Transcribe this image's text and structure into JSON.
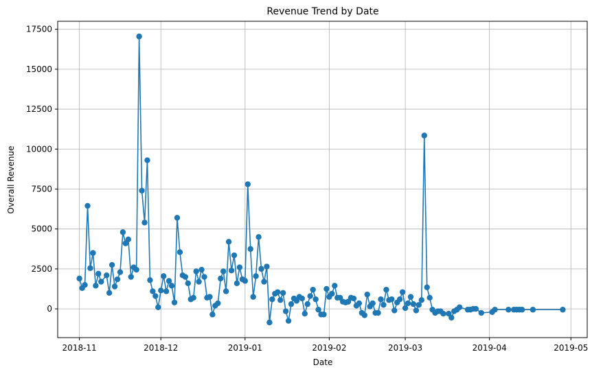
{
  "chart_data": {
    "type": "line",
    "title": "Revenue Trend by Date",
    "xlabel": "Date",
    "ylabel": "Overall Revenue",
    "xlim": [
      "2018-10-24",
      "2019-05-07"
    ],
    "ylim": [
      -1800,
      18000
    ],
    "grid": true,
    "legend": "none",
    "line_color": "#1f77b4",
    "marker": "circle",
    "x_ticks": [
      {
        "date": "2018-11-01",
        "label": "2018-11"
      },
      {
        "date": "2018-12-01",
        "label": "2018-12"
      },
      {
        "date": "2019-01-01",
        "label": "2019-01"
      },
      {
        "date": "2019-02-01",
        "label": "2019-02"
      },
      {
        "date": "2019-03-01",
        "label": "2019-03"
      },
      {
        "date": "2019-04-01",
        "label": "2019-04"
      },
      {
        "date": "2019-05-01",
        "label": "2019-05"
      }
    ],
    "y_ticks": [
      {
        "value": 0,
        "label": "0"
      },
      {
        "value": 2500,
        "label": "2500"
      },
      {
        "value": 5000,
        "label": "5000"
      },
      {
        "value": 7500,
        "label": "7500"
      },
      {
        "value": 10000,
        "label": "10000"
      },
      {
        "value": 12500,
        "label": "12500"
      },
      {
        "value": 15000,
        "label": "15000"
      },
      {
        "value": 17500,
        "label": "17500"
      }
    ],
    "series": [
      {
        "points": [
          [
            "2018-11-01",
            1900
          ],
          [
            "2018-11-02",
            1300
          ],
          [
            "2018-11-03",
            1500
          ],
          [
            "2018-11-04",
            6450
          ],
          [
            "2018-11-05",
            2550
          ],
          [
            "2018-11-06",
            3500
          ],
          [
            "2018-11-07",
            1450
          ],
          [
            "2018-11-08",
            2200
          ],
          [
            "2018-11-09",
            1700
          ],
          [
            "2018-11-11",
            2100
          ],
          [
            "2018-11-12",
            1000
          ],
          [
            "2018-11-13",
            2750
          ],
          [
            "2018-11-14",
            1400
          ],
          [
            "2018-11-15",
            1850
          ],
          [
            "2018-11-16",
            2300
          ],
          [
            "2018-11-17",
            4800
          ],
          [
            "2018-11-18",
            4100
          ],
          [
            "2018-11-19",
            4350
          ],
          [
            "2018-11-20",
            2000
          ],
          [
            "2018-11-21",
            2600
          ],
          [
            "2018-11-22",
            2450
          ],
          [
            "2018-11-23",
            17050
          ],
          [
            "2018-11-24",
            7400
          ],
          [
            "2018-11-25",
            5400
          ],
          [
            "2018-11-26",
            9300
          ],
          [
            "2018-11-27",
            1800
          ],
          [
            "2018-11-28",
            1100
          ],
          [
            "2018-11-29",
            800
          ],
          [
            "2018-11-30",
            100
          ],
          [
            "2018-12-01",
            1150
          ],
          [
            "2018-12-02",
            2050
          ],
          [
            "2018-12-03",
            1100
          ],
          [
            "2018-12-04",
            1750
          ],
          [
            "2018-12-05",
            1450
          ],
          [
            "2018-12-06",
            400
          ],
          [
            "2018-12-07",
            5700
          ],
          [
            "2018-12-08",
            3550
          ],
          [
            "2018-12-09",
            2100
          ],
          [
            "2018-12-10",
            2000
          ],
          [
            "2018-12-11",
            1600
          ],
          [
            "2018-12-12",
            600
          ],
          [
            "2018-12-13",
            700
          ],
          [
            "2018-12-14",
            2350
          ],
          [
            "2018-12-15",
            1700
          ],
          [
            "2018-12-16",
            2450
          ],
          [
            "2018-12-17",
            2000
          ],
          [
            "2018-12-18",
            700
          ],
          [
            "2018-12-19",
            750
          ],
          [
            "2018-12-20",
            -350
          ],
          [
            "2018-12-21",
            200
          ],
          [
            "2018-12-22",
            350
          ],
          [
            "2018-12-23",
            1900
          ],
          [
            "2018-12-24",
            2350
          ],
          [
            "2018-12-25",
            1100
          ],
          [
            "2018-12-26",
            4200
          ],
          [
            "2018-12-27",
            2400
          ],
          [
            "2018-12-28",
            3350
          ],
          [
            "2018-12-29",
            1600
          ],
          [
            "2018-12-30",
            2600
          ],
          [
            "2018-12-31",
            1850
          ],
          [
            "2019-01-01",
            1750
          ],
          [
            "2019-01-02",
            7800
          ],
          [
            "2019-01-03",
            3750
          ],
          [
            "2019-01-04",
            750
          ],
          [
            "2019-01-05",
            2050
          ],
          [
            "2019-01-06",
            4500
          ],
          [
            "2019-01-07",
            2500
          ],
          [
            "2019-01-08",
            1700
          ],
          [
            "2019-01-09",
            2650
          ],
          [
            "2019-01-10",
            -850
          ],
          [
            "2019-01-11",
            600
          ],
          [
            "2019-01-12",
            950
          ],
          [
            "2019-01-13",
            1050
          ],
          [
            "2019-01-14",
            550
          ],
          [
            "2019-01-15",
            1000
          ],
          [
            "2019-01-16",
            -150
          ],
          [
            "2019-01-17",
            -750
          ],
          [
            "2019-01-18",
            300
          ],
          [
            "2019-01-19",
            650
          ],
          [
            "2019-01-20",
            500
          ],
          [
            "2019-01-21",
            750
          ],
          [
            "2019-01-22",
            650
          ],
          [
            "2019-01-23",
            -300
          ],
          [
            "2019-01-24",
            300
          ],
          [
            "2019-01-25",
            800
          ],
          [
            "2019-01-26",
            1200
          ],
          [
            "2019-01-27",
            600
          ],
          [
            "2019-01-28",
            -50
          ],
          [
            "2019-01-29",
            -350
          ],
          [
            "2019-01-30",
            -350
          ],
          [
            "2019-01-31",
            1250
          ],
          [
            "2019-02-01",
            750
          ],
          [
            "2019-02-02",
            950
          ],
          [
            "2019-02-03",
            1450
          ],
          [
            "2019-02-04",
            700
          ],
          [
            "2019-02-05",
            700
          ],
          [
            "2019-02-06",
            450
          ],
          [
            "2019-02-07",
            400
          ],
          [
            "2019-02-08",
            450
          ],
          [
            "2019-02-09",
            700
          ],
          [
            "2019-02-10",
            650
          ],
          [
            "2019-02-11",
            200
          ],
          [
            "2019-02-12",
            350
          ],
          [
            "2019-02-13",
            -250
          ],
          [
            "2019-02-14",
            -400
          ],
          [
            "2019-02-15",
            900
          ],
          [
            "2019-02-16",
            150
          ],
          [
            "2019-02-17",
            350
          ],
          [
            "2019-02-18",
            -250
          ],
          [
            "2019-02-19",
            -250
          ],
          [
            "2019-02-20",
            600
          ],
          [
            "2019-02-21",
            250
          ],
          [
            "2019-02-22",
            1200
          ],
          [
            "2019-02-23",
            550
          ],
          [
            "2019-02-24",
            600
          ],
          [
            "2019-02-25",
            -100
          ],
          [
            "2019-02-26",
            400
          ],
          [
            "2019-02-27",
            600
          ],
          [
            "2019-02-28",
            1050
          ],
          [
            "2019-03-01",
            50
          ],
          [
            "2019-03-02",
            350
          ],
          [
            "2019-03-03",
            750
          ],
          [
            "2019-03-04",
            300
          ],
          [
            "2019-03-05",
            -100
          ],
          [
            "2019-03-06",
            250
          ],
          [
            "2019-03-07",
            550
          ],
          [
            "2019-03-08",
            10850
          ],
          [
            "2019-03-09",
            1350
          ],
          [
            "2019-03-10",
            700
          ],
          [
            "2019-03-11",
            -50
          ],
          [
            "2019-03-12",
            -250
          ],
          [
            "2019-03-13",
            -150
          ],
          [
            "2019-03-14",
            -150
          ],
          [
            "2019-03-15",
            -300
          ],
          [
            "2019-03-17",
            -300
          ],
          [
            "2019-03-18",
            -550
          ],
          [
            "2019-03-19",
            -150
          ],
          [
            "2019-03-20",
            -50
          ],
          [
            "2019-03-21",
            100
          ],
          [
            "2019-03-24",
            -50
          ],
          [
            "2019-03-25",
            -50
          ],
          [
            "2019-03-26",
            0
          ],
          [
            "2019-03-27",
            0
          ],
          [
            "2019-03-29",
            -250
          ],
          [
            "2019-04-02",
            -200
          ],
          [
            "2019-04-03",
            -50
          ],
          [
            "2019-04-08",
            -50
          ],
          [
            "2019-04-10",
            -50
          ],
          [
            "2019-04-11",
            -50
          ],
          [
            "2019-04-12",
            -50
          ],
          [
            "2019-04-13",
            -50
          ],
          [
            "2019-04-17",
            -50
          ],
          [
            "2019-04-28",
            -50
          ]
        ]
      }
    ]
  }
}
